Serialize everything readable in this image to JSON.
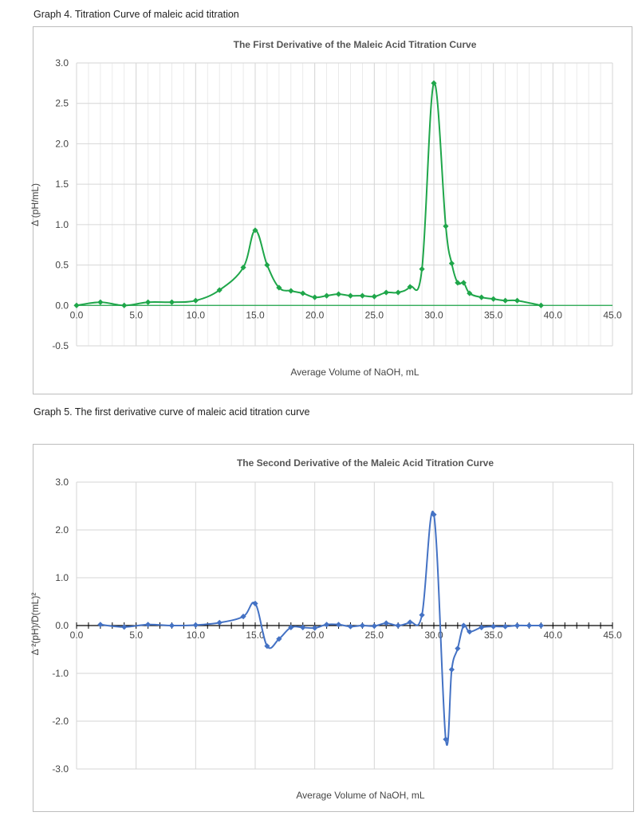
{
  "captions": {
    "graph4": "Graph 4. Titration Curve of maleic acid titration",
    "graph5": "Graph 5. The first derivative curve of maleic acid titration curve"
  },
  "chart_data": [
    {
      "type": "line",
      "title": "The First Derivative of the Maleic Acid Titration Curve",
      "xlabel": "Average Volume of NaOH, mL",
      "ylabel": "Δ (pH/mL)",
      "xlim": [
        0,
        45
      ],
      "ylim": [
        -0.5,
        3.0
      ],
      "xticks": [
        "0.0",
        "5.0",
        "10.0",
        "15.0",
        "20.0",
        "25.0",
        "30.0",
        "35.0",
        "40.0",
        "45.0"
      ],
      "yticks": [
        "3.0",
        "2.5",
        "2.0",
        "1.5",
        "1.0",
        "0.5",
        "0.0",
        "-0.5"
      ],
      "grid": true,
      "color": "#1fa64a",
      "marker": "diamond",
      "series": [
        {
          "x": [
            0,
            2,
            4,
            6,
            8,
            10,
            12,
            14,
            15,
            16,
            17,
            18,
            19,
            20,
            21,
            22,
            23,
            24,
            25,
            26,
            27,
            28,
            29,
            30,
            31,
            31.5,
            32,
            32.5,
            33,
            34,
            35,
            36,
            37,
            39
          ],
          "y": [
            0.0,
            0.04,
            0.0,
            0.04,
            0.04,
            0.06,
            0.19,
            0.47,
            0.93,
            0.5,
            0.22,
            0.18,
            0.15,
            0.1,
            0.12,
            0.14,
            0.12,
            0.12,
            0.11,
            0.16,
            0.16,
            0.23,
            0.45,
            2.75,
            0.98,
            0.52,
            0.28,
            0.28,
            0.15,
            0.1,
            0.08,
            0.06,
            0.06,
            0.0
          ]
        }
      ]
    },
    {
      "type": "line",
      "title": "The Second Derivative of the Maleic Acid Titration Curve",
      "xlabel": "Average Volume of NaOH, mL",
      "ylabel": "Δ ²(pH)/D(mL)²",
      "xlim": [
        0,
        45
      ],
      "ylim": [
        -3.0,
        3.0
      ],
      "xticks": [
        "0.0",
        "5.0",
        "10.0",
        "15.0",
        "20.0",
        "25.0",
        "30.0",
        "35.0",
        "40.0",
        "45.0"
      ],
      "yticks": [
        "3.0",
        "2.0",
        "1.0",
        "0.0",
        "-1.0",
        "-2.0",
        "-3.0"
      ],
      "grid": true,
      "color": "#4472c4",
      "marker": "diamond",
      "series": [
        {
          "x": [
            2,
            4,
            6,
            8,
            10,
            12,
            14,
            15,
            16,
            17,
            18,
            19,
            20,
            21,
            22,
            23,
            24,
            25,
            26,
            27,
            28,
            29,
            30,
            31,
            31.5,
            32,
            32.5,
            33,
            34,
            35,
            36,
            37,
            38,
            39
          ],
          "y": [
            0.02,
            -0.03,
            0.02,
            0.0,
            0.01,
            0.06,
            0.19,
            0.46,
            -0.43,
            -0.28,
            -0.04,
            -0.04,
            -0.05,
            0.02,
            0.02,
            -0.02,
            0.0,
            -0.01,
            0.05,
            0.0,
            0.07,
            0.22,
            2.32,
            -2.38,
            -0.92,
            -0.48,
            0.0,
            -0.13,
            -0.04,
            -0.02,
            -0.02,
            0.0,
            0.0,
            0.0
          ]
        }
      ]
    }
  ]
}
